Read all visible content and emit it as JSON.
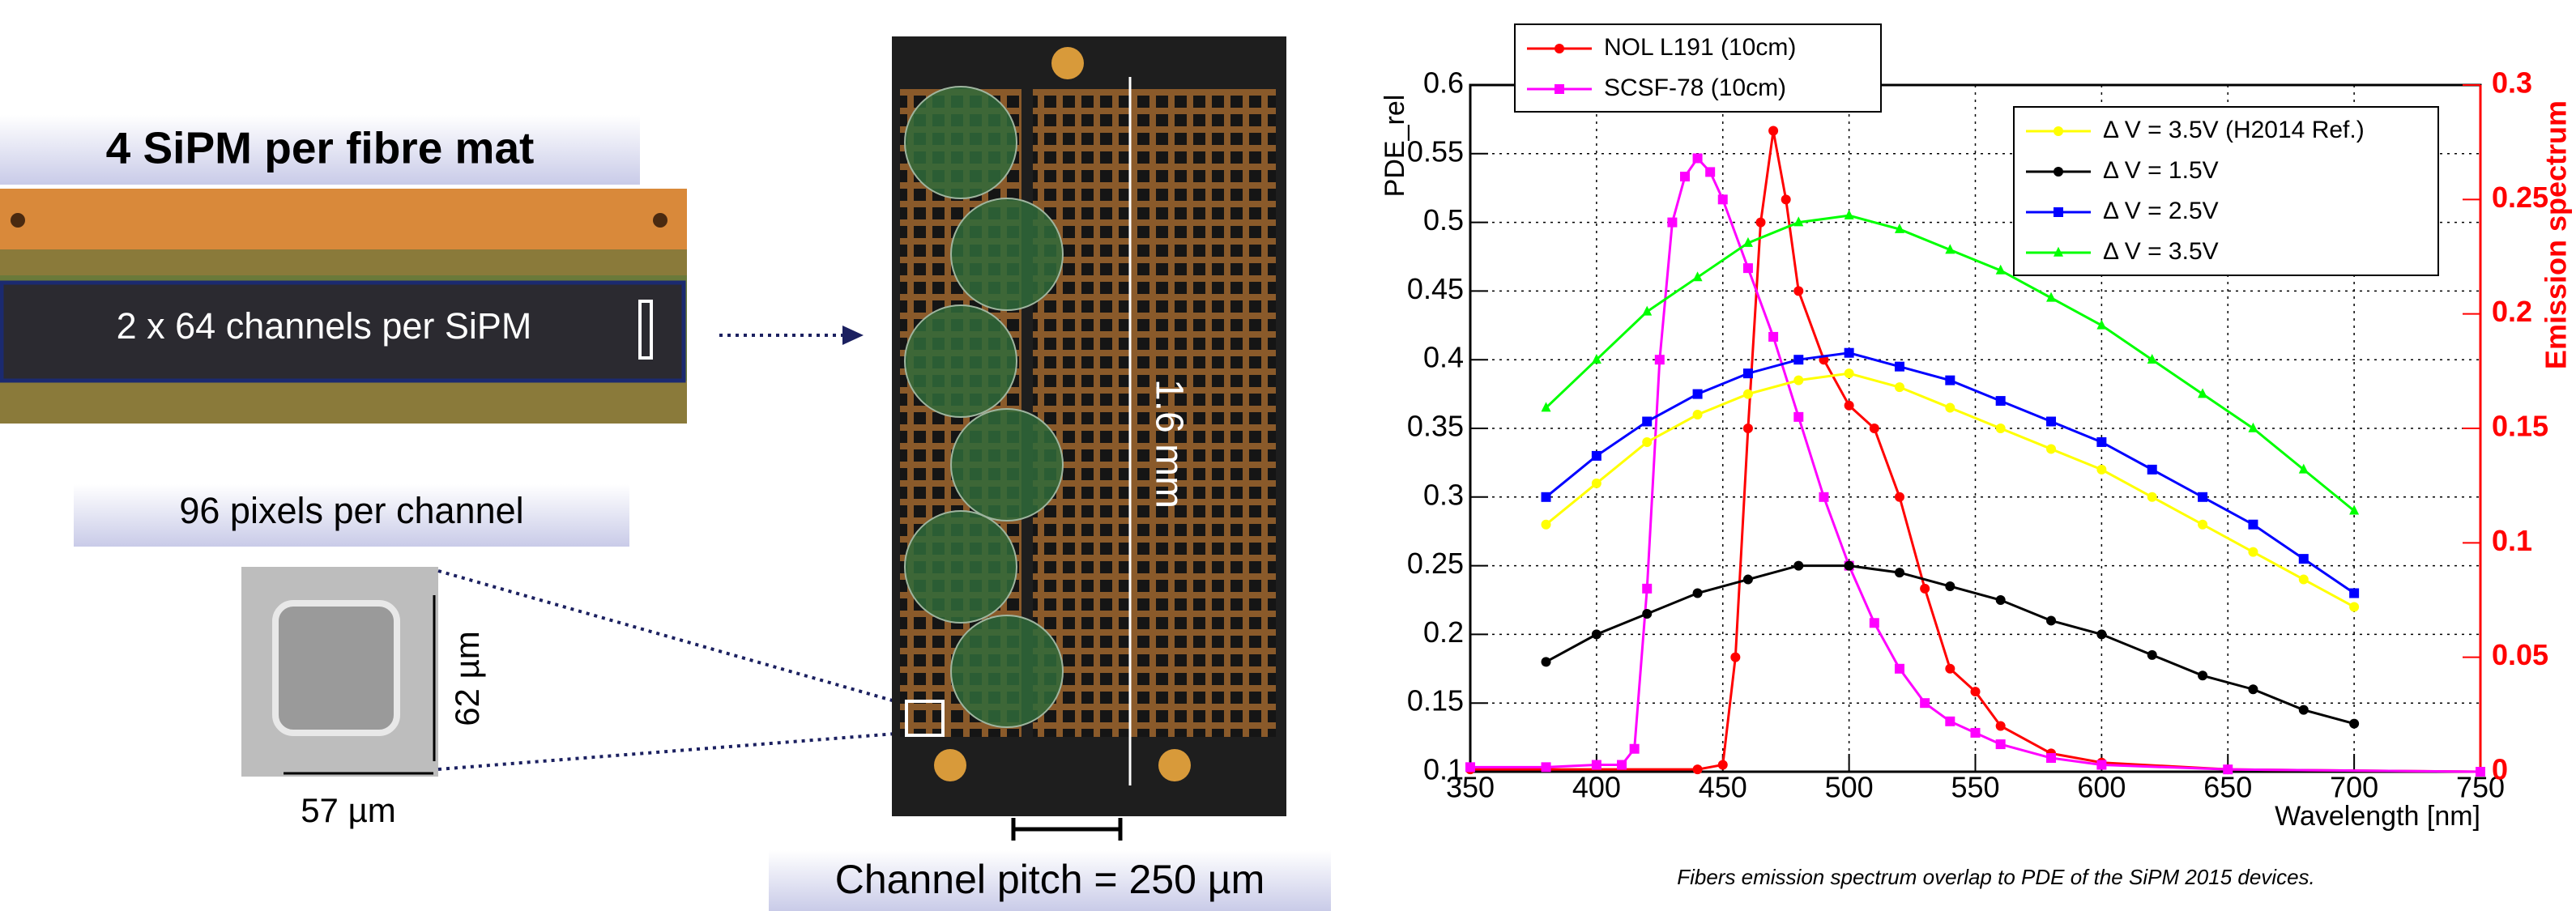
{
  "panels": {
    "sipm_title": "4 SiPM per fibre mat",
    "channels_label": "2 x 64 channels per SiPM",
    "pixels_label": "96 pixels per channel",
    "pixel_height": "62 µm",
    "pixel_width": "57 µm",
    "array_height": "1.6 mm",
    "channel_pitch": "Channel pitch = 250 µm"
  },
  "chart_data": {
    "type": "line",
    "y_label": "PDE_rel",
    "y2_label": "Emission spectrum",
    "x_label": "Wavelength [nm]",
    "caption": "Fibers emission spectrum overlap to PDE of the SiPM 2015 devices.",
    "xlim": [
      350,
      750
    ],
    "xticks": [
      350,
      400,
      450,
      500,
      550,
      600,
      650,
      700,
      750
    ],
    "ylim": [
      0.1,
      0.6
    ],
    "yticks": [
      0.1,
      0.15,
      0.2,
      0.25,
      0.3,
      0.35,
      0.4,
      0.45,
      0.5,
      0.55,
      0.6
    ],
    "y2lim": [
      0,
      0.3
    ],
    "y2ticks": [
      0,
      0.05,
      0.1,
      0.15,
      0.2,
      0.25,
      0.3
    ],
    "grid": true,
    "series": [
      {
        "name": "NOL L191 (10cm)",
        "color": "#ff0000",
        "axis": "y2",
        "marker": "circle",
        "x": [
          350,
          440,
          450,
          455,
          460,
          465,
          470,
          475,
          480,
          490,
          500,
          510,
          520,
          530,
          540,
          550,
          560,
          580,
          600,
          650,
          750
        ],
        "values": [
          0.001,
          0.001,
          0.003,
          0.05,
          0.15,
          0.24,
          0.28,
          0.25,
          0.21,
          0.18,
          0.16,
          0.15,
          0.12,
          0.08,
          0.045,
          0.035,
          0.02,
          0.008,
          0.004,
          0.001,
          0
        ]
      },
      {
        "name": "SCSF-78 (10cm)",
        "color": "#ff00ff",
        "axis": "y2",
        "marker": "square",
        "x": [
          350,
          380,
          400,
          410,
          415,
          420,
          425,
          430,
          435,
          440,
          445,
          450,
          460,
          470,
          480,
          490,
          500,
          510,
          520,
          530,
          540,
          550,
          560,
          580,
          600,
          650,
          750
        ],
        "values": [
          0.002,
          0.002,
          0.003,
          0.003,
          0.01,
          0.08,
          0.18,
          0.24,
          0.26,
          0.268,
          0.262,
          0.25,
          0.22,
          0.19,
          0.155,
          0.12,
          0.09,
          0.065,
          0.045,
          0.03,
          0.022,
          0.017,
          0.012,
          0.006,
          0.003,
          0.001,
          0
        ]
      },
      {
        "name": "Δ V = 3.5V (H2014 Ref.)",
        "color": "#ffff00",
        "marker": "circle",
        "x": [
          380,
          400,
          420,
          440,
          460,
          480,
          500,
          520,
          540,
          560,
          580,
          600,
          620,
          640,
          660,
          680,
          700
        ],
        "values": [
          0.28,
          0.31,
          0.34,
          0.36,
          0.375,
          0.385,
          0.39,
          0.38,
          0.365,
          0.35,
          0.335,
          0.32,
          0.3,
          0.28,
          0.26,
          0.24,
          0.22
        ]
      },
      {
        "name": "Δ V = 1.5V",
        "color": "#000000",
        "marker": "circle",
        "x": [
          380,
          400,
          420,
          440,
          460,
          480,
          500,
          520,
          540,
          560,
          580,
          600,
          620,
          640,
          660,
          680,
          700
        ],
        "values": [
          0.18,
          0.2,
          0.215,
          0.23,
          0.24,
          0.25,
          0.25,
          0.245,
          0.235,
          0.225,
          0.21,
          0.2,
          0.185,
          0.17,
          0.16,
          0.145,
          0.135
        ]
      },
      {
        "name": "Δ V = 2.5V",
        "color": "#0000ff",
        "marker": "square",
        "x": [
          380,
          400,
          420,
          440,
          460,
          480,
          500,
          520,
          540,
          560,
          580,
          600,
          620,
          640,
          660,
          680,
          700
        ],
        "values": [
          0.3,
          0.33,
          0.355,
          0.375,
          0.39,
          0.4,
          0.405,
          0.395,
          0.385,
          0.37,
          0.355,
          0.34,
          0.32,
          0.3,
          0.28,
          0.255,
          0.23
        ]
      },
      {
        "name": "Δ V = 3.5V",
        "color": "#00ff00",
        "marker": "triangle",
        "x": [
          380,
          400,
          420,
          440,
          460,
          480,
          500,
          520,
          540,
          560,
          580,
          600,
          620,
          640,
          660,
          680,
          700
        ],
        "values": [
          0.365,
          0.4,
          0.435,
          0.46,
          0.485,
          0.5,
          0.505,
          0.495,
          0.48,
          0.465,
          0.445,
          0.425,
          0.4,
          0.375,
          0.35,
          0.32,
          0.29
        ]
      }
    ]
  },
  "caption_note": null
}
